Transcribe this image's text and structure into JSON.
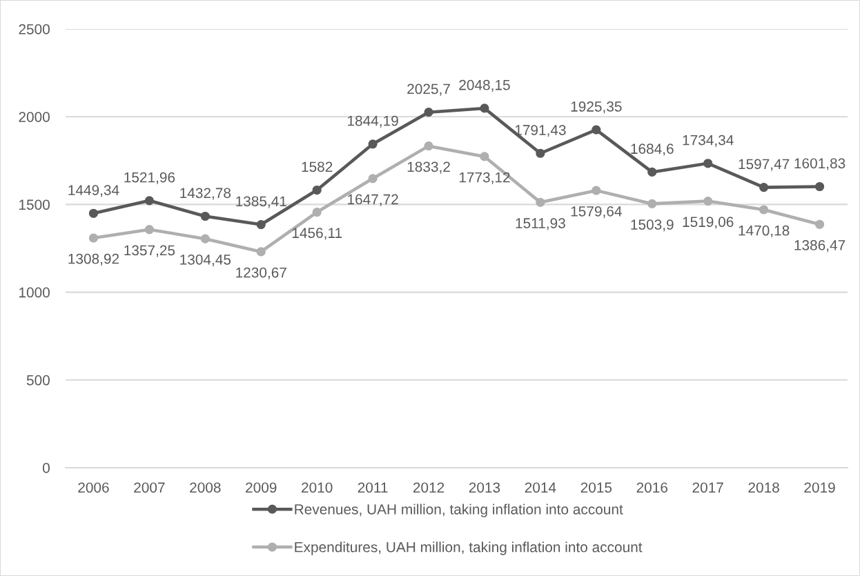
{
  "chart_data": {
    "type": "line",
    "categories": [
      "2006",
      "2007",
      "2008",
      "2009",
      "2010",
      "2011",
      "2012",
      "2013",
      "2014",
      "2015",
      "2016",
      "2017",
      "2018",
      "2019"
    ],
    "series": [
      {
        "name": "Revenues, UAH million, taking inflation into account",
        "color": "#595959",
        "values": [
          1449.34,
          1521.96,
          1432.78,
          1385.41,
          1582,
          1844.19,
          2025.7,
          2048.15,
          1791.43,
          1925.35,
          1684.6,
          1734.34,
          1597.47,
          1601.83
        ],
        "value_labels": [
          "1449,34",
          "1521,96",
          "1432,78",
          "1385,41",
          "1582",
          "1844,19",
          "2025,7",
          "2048,15",
          "1791,43",
          "1925,35",
          "1684,6",
          "1734,34",
          "1597,47",
          "1601,83"
        ]
      },
      {
        "name": "Expenditures, UAH million, taking inflation into account",
        "color": "#afafaf",
        "values": [
          1308.92,
          1357.25,
          1304.45,
          1230.67,
          1456.11,
          1647.72,
          1833.2,
          1773.12,
          1511.93,
          1579.64,
          1503.9,
          1519.06,
          1470.18,
          1386.47
        ],
        "value_labels": [
          "1308,92",
          "1357,25",
          "1304,45",
          "1230,67",
          "1456,11",
          "1647,72",
          "1833,2",
          "1773,12",
          "1511,93",
          "1579,64",
          "1503,9",
          "1519,06",
          "1470,18",
          "1386,47"
        ]
      }
    ],
    "ylim": [
      0,
      2500
    ],
    "yticks": [
      0,
      500,
      1000,
      1500,
      2000,
      2500
    ],
    "grid": "y",
    "legend": "bottom",
    "marker": "circle",
    "line_style": "solid"
  }
}
